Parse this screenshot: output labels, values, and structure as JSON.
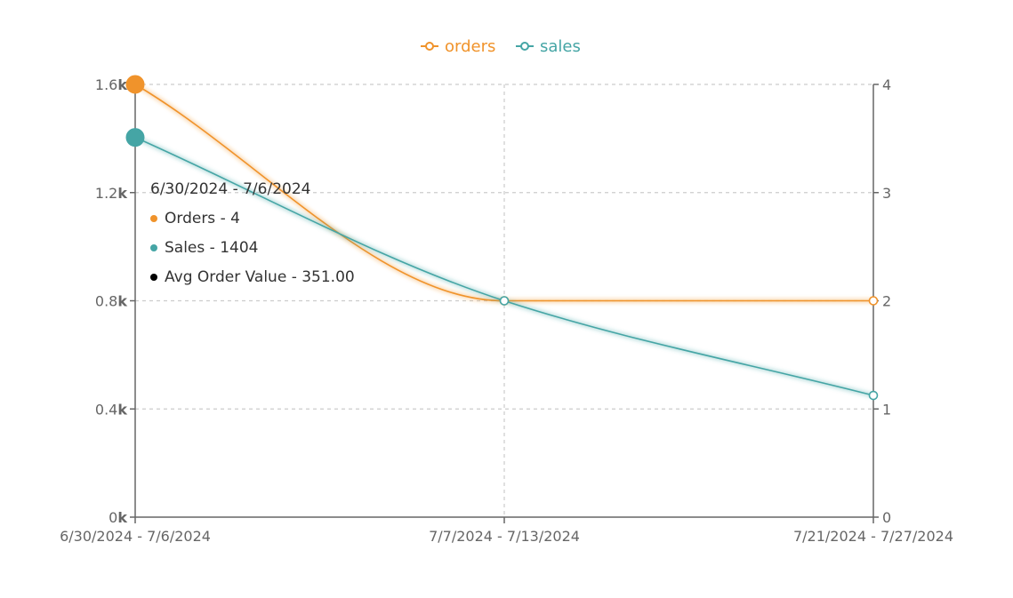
{
  "chart_data": {
    "type": "line",
    "categories": [
      "6/30/2024 - 7/6/2024",
      "7/7/2024 - 7/13/2024",
      "7/21/2024 - 7/27/2024"
    ],
    "series": [
      {
        "name": "orders",
        "axis": "right",
        "color": "#f0932b",
        "values": [
          4,
          2,
          2
        ]
      },
      {
        "name": "sales",
        "axis": "left",
        "color": "#45a5a5",
        "values": [
          1404,
          800,
          450
        ]
      }
    ],
    "left_axis": {
      "range": [
        0,
        1600
      ],
      "ticks": [
        0,
        400,
        800,
        1200,
        1600
      ],
      "tick_labels": [
        {
          "num": "0",
          "suffix": "k"
        },
        {
          "num": "0.4",
          "suffix": "k"
        },
        {
          "num": "0.8",
          "suffix": "k"
        },
        {
          "num": "1.2",
          "suffix": "k"
        },
        {
          "num": "1.6",
          "suffix": "k"
        }
      ]
    },
    "right_axis": {
      "range": [
        0,
        4
      ],
      "ticks": [
        0,
        1,
        2,
        3,
        4
      ],
      "tick_labels": [
        "0",
        "1",
        "2",
        "3",
        "4"
      ]
    },
    "grid": "dashed",
    "legend_position": "top-center",
    "highlighted_category": 0
  },
  "tooltip": {
    "title": "6/30/2024 - 7/6/2024",
    "rows": [
      {
        "label": "Orders - 4",
        "color": "#f0932b"
      },
      {
        "label": "Sales - 1404",
        "color": "#45a5a5"
      },
      {
        "label": "Avg Order Value - 351.00",
        "color": "#000000"
      }
    ]
  }
}
